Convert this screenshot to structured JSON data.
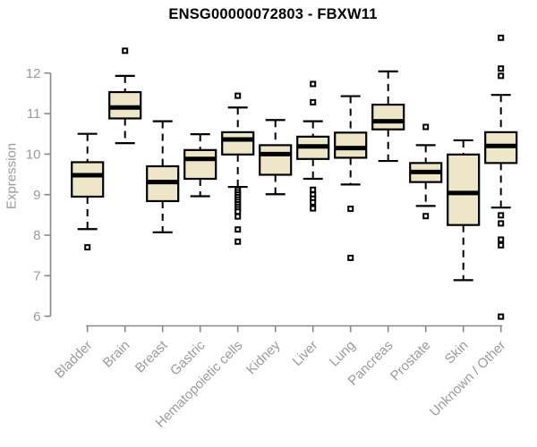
{
  "chart_data": {
    "type": "boxplot",
    "title": "ENSG00000072803 - FBXW11",
    "ylabel": "Expression",
    "xlabel": "",
    "ylim": [
      5.8,
      13.0
    ],
    "yticks": [
      6,
      7,
      8,
      9,
      10,
      11,
      12
    ],
    "grid": false,
    "legend": "none",
    "categories": [
      "Bladder",
      "Brain",
      "Breast",
      "Gastric",
      "Hematopoietic cells",
      "Kidney",
      "Liver",
      "Lung",
      "Pancreas",
      "Prostate",
      "Skin",
      "Unknown / Other"
    ],
    "boxes": [
      {
        "category": "Bladder",
        "whisker_low": 8.15,
        "q1": 8.95,
        "median": 9.48,
        "q3": 9.8,
        "whisker_high": 10.5,
        "outliers": [
          7.7
        ]
      },
      {
        "category": "Brain",
        "whisker_low": 10.27,
        "q1": 10.88,
        "median": 11.15,
        "q3": 11.53,
        "whisker_high": 11.93,
        "outliers": [
          12.55
        ]
      },
      {
        "category": "Breast",
        "whisker_low": 8.07,
        "q1": 8.84,
        "median": 9.31,
        "q3": 9.7,
        "whisker_high": 10.81,
        "outliers": []
      },
      {
        "category": "Gastric",
        "whisker_low": 8.96,
        "q1": 9.39,
        "median": 9.88,
        "q3": 10.1,
        "whisker_high": 10.49,
        "outliers": []
      },
      {
        "category": "Hematopoietic cells",
        "whisker_low": 9.19,
        "q1": 9.99,
        "median": 10.36,
        "q3": 10.54,
        "whisker_high": 11.15,
        "outliers": [
          11.44,
          9.12,
          9.06,
          9.0,
          8.94,
          8.88,
          8.82,
          8.76,
          8.7,
          8.64,
          8.58,
          8.46,
          8.14,
          7.84
        ]
      },
      {
        "category": "Kidney",
        "whisker_low": 9.01,
        "q1": 9.49,
        "median": 10.0,
        "q3": 10.22,
        "whisker_high": 10.84,
        "outliers": []
      },
      {
        "category": "Liver",
        "whisker_low": 9.39,
        "q1": 9.88,
        "median": 10.19,
        "q3": 10.43,
        "whisker_high": 10.81,
        "outliers": [
          11.73,
          11.28,
          9.12,
          9.0,
          8.9,
          8.81,
          8.66
        ]
      },
      {
        "category": "Lung",
        "whisker_low": 9.25,
        "q1": 9.91,
        "median": 10.15,
        "q3": 10.53,
        "whisker_high": 11.43,
        "outliers": [
          8.65,
          7.44
        ]
      },
      {
        "category": "Pancreas",
        "whisker_low": 9.83,
        "q1": 10.61,
        "median": 10.81,
        "q3": 11.22,
        "whisker_high": 12.04,
        "outliers": []
      },
      {
        "category": "Prostate",
        "whisker_low": 8.72,
        "q1": 9.31,
        "median": 9.56,
        "q3": 9.78,
        "whisker_high": 10.22,
        "outliers": [
          10.67,
          8.47
        ]
      },
      {
        "category": "Skin",
        "whisker_low": 6.89,
        "q1": 8.25,
        "median": 9.04,
        "q3": 9.99,
        "whisker_high": 10.34,
        "outliers": []
      },
      {
        "category": "Unknown / Other",
        "whisker_low": 8.68,
        "q1": 9.78,
        "median": 10.2,
        "q3": 10.54,
        "whisker_high": 11.46,
        "outliers": [
          12.87,
          12.11,
          11.93,
          8.49,
          8.29,
          7.89,
          7.75,
          5.99
        ]
      }
    ]
  },
  "colors": {
    "box_fill": "#EDE6C9",
    "box_stroke": "#000000",
    "axis_line": "#878787",
    "tick_label": "#9a9a9a",
    "title": "#000000",
    "background": "#ffffff",
    "outlier_fill": "#ffffff"
  }
}
